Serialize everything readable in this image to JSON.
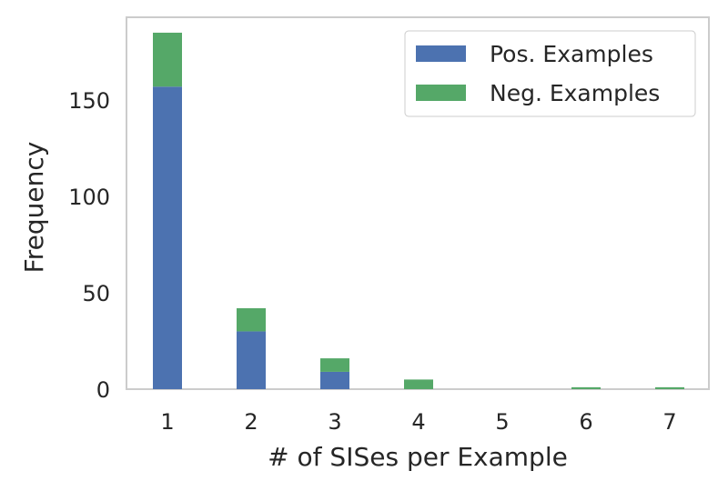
{
  "chart_data": {
    "type": "bar",
    "stacked": true,
    "categories": [
      "1",
      "2",
      "3",
      "4",
      "5",
      "6",
      "7"
    ],
    "series": [
      {
        "name": "Pos. Examples",
        "color": "#4c72b0",
        "values": [
          157,
          30,
          9,
          0,
          0,
          0,
          0
        ]
      },
      {
        "name": "Neg. Examples",
        "color": "#55a868",
        "values": [
          28,
          12,
          7,
          5,
          0,
          1,
          1
        ]
      }
    ],
    "xlabel": "# of SISes per Example",
    "ylabel": "Frequency",
    "yticks": [
      "0",
      "50",
      "100",
      "150"
    ],
    "ylim": [
      0,
      193
    ],
    "grid": false,
    "legend_position": "top-right"
  }
}
